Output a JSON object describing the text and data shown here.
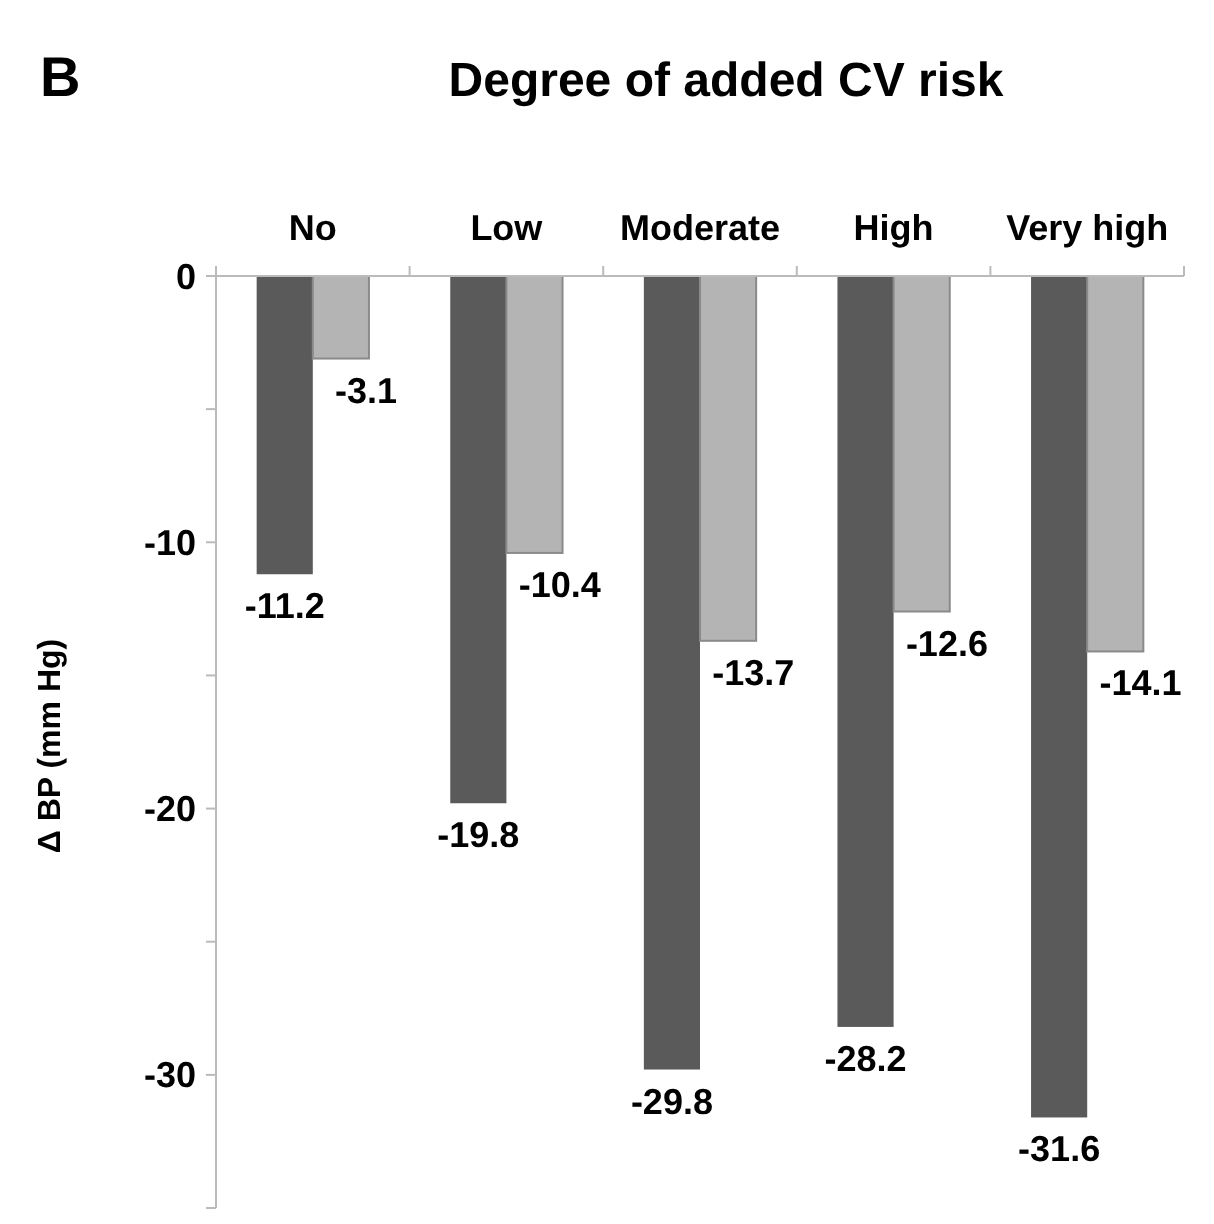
{
  "chart_data": {
    "type": "bar",
    "title": "Degree of added CV risk",
    "ylabel": "Δ BP (mm Hg)",
    "annotations": [
      "B"
    ],
    "categories": [
      "No",
      "Low",
      "Moderate",
      "High",
      "Very high"
    ],
    "series": [
      {
        "color": "#5a5a5a",
        "values": [
          -11.2,
          -19.8,
          -29.8,
          -28.2,
          -31.6
        ]
      },
      {
        "color": "#b4b4b4",
        "values": [
          -3.1,
          -10.4,
          -13.7,
          -12.6,
          -14.1
        ]
      }
    ],
    "ylim": [
      -35,
      0
    ],
    "yticks": [
      0,
      {
        "value": -5,
        "label": null
      },
      -10,
      {
        "value": -15,
        "label": null
      },
      -20,
      {
        "value": -25,
        "label": null
      },
      -30,
      {
        "value": -35,
        "label": null
      }
    ],
    "data_labels": true,
    "grid": false
  }
}
